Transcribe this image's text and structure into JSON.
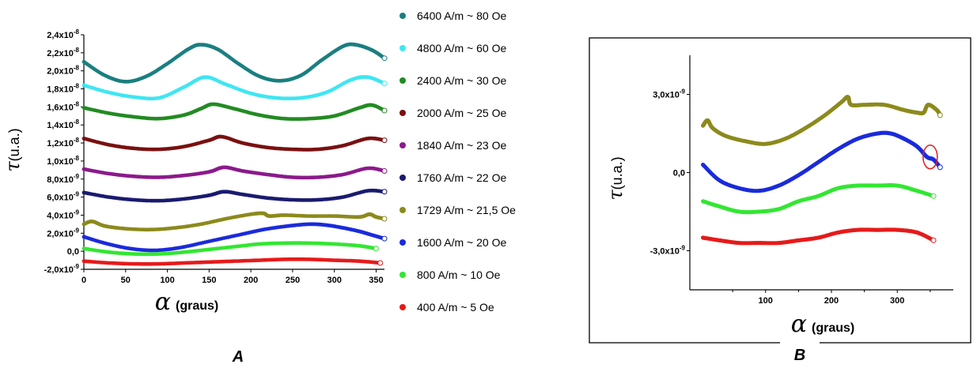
{
  "chart_data": [
    {
      "panel": "A",
      "type": "scatter",
      "panel_label": "A",
      "xlabel_symbol": "α",
      "xlabel": "(graus)",
      "ylabel_symbol": "τ",
      "ylabel": "(u.a.)",
      "xlim": [
        0,
        360
      ],
      "ylim": [
        -2e-09,
        2.4e-08
      ],
      "x_ticks": [
        "0",
        "50",
        "100",
        "150",
        "200",
        "250",
        "300",
        "350"
      ],
      "x_tick_values": [
        0,
        50,
        100,
        150,
        200,
        250,
        300,
        350
      ],
      "y_ticks": [
        "-2,0x10-9",
        "0,0",
        "2,0x10-9",
        "4,0x10-9",
        "6,0x10-9",
        "8,0x10-9",
        "1,0x10-8",
        "1,2x10-8",
        "1,4x10-8",
        "1,6x10-8",
        "1,8x10-8",
        "2,0x10-8",
        "2,2x10-8",
        "2,4x10-8"
      ],
      "y_tick_mantissa": [
        "-2,0x10",
        "0,0",
        "2,0x10",
        "4,0x10",
        "6,0x10",
        "8,0x10",
        "1,0x10",
        "1,2x10",
        "1,4x10",
        "1,6x10",
        "1,8x10",
        "2,0x10",
        "2,2x10",
        "2,4x10"
      ],
      "y_tick_exponent": [
        "-9",
        "",
        "-9",
        "-9",
        "-9",
        "-9",
        "-8",
        "-8",
        "-8",
        "-8",
        "-8",
        "-8",
        "-8",
        "-8"
      ],
      "y_tick_values": [
        -2e-09,
        0,
        2e-09,
        4e-09,
        6e-09,
        8e-09,
        1e-08,
        1.2e-08,
        1.4e-08,
        1.6e-08,
        1.8e-08,
        2e-08,
        2.2e-08,
        2.4e-08
      ],
      "series": [
        {
          "name": "6400 A/m ~ 80 Oe",
          "color": "#1a7f80",
          "x": [
            0,
            25,
            50,
            75,
            100,
            125,
            140,
            160,
            185,
            210,
            235,
            260,
            285,
            310,
            325,
            345,
            360
          ],
          "y": [
            2.1e-08,
            1.95e-08,
            1.88e-08,
            1.94e-08,
            2.08e-08,
            2.24e-08,
            2.29e-08,
            2.24e-08,
            2.08e-08,
            1.94e-08,
            1.89e-08,
            1.95e-08,
            2.12e-08,
            2.27e-08,
            2.29e-08,
            2.23e-08,
            2.14e-08
          ]
        },
        {
          "name": "4800 A/m ~ 60 Oe",
          "color": "#3fe6f2",
          "x": [
            0,
            30,
            60,
            90,
            120,
            145,
            170,
            200,
            230,
            260,
            290,
            320,
            340,
            360
          ],
          "y": [
            1.84e-08,
            1.76e-08,
            1.71e-08,
            1.7e-08,
            1.82e-08,
            1.93e-08,
            1.85e-08,
            1.75e-08,
            1.7e-08,
            1.7e-08,
            1.76e-08,
            1.9e-08,
            1.93e-08,
            1.86e-08
          ]
        },
        {
          "name": "2400 A/m ~ 30 Oe",
          "color": "#228b22",
          "x": [
            0,
            30,
            60,
            90,
            120,
            140,
            155,
            180,
            210,
            240,
            270,
            300,
            330,
            345,
            360
          ],
          "y": [
            1.59e-08,
            1.53e-08,
            1.49e-08,
            1.47e-08,
            1.51e-08,
            1.58e-08,
            1.63e-08,
            1.58e-08,
            1.51e-08,
            1.47e-08,
            1.47e-08,
            1.5e-08,
            1.59e-08,
            1.62e-08,
            1.56e-08
          ]
        },
        {
          "name": "2000 A/m ~ 25 Oe",
          "color": "#7a1010",
          "x": [
            0,
            30,
            60,
            90,
            120,
            150,
            165,
            190,
            220,
            250,
            280,
            310,
            340,
            360
          ],
          "y": [
            1.25e-08,
            1.18e-08,
            1.14e-08,
            1.13e-08,
            1.16e-08,
            1.23e-08,
            1.27e-08,
            1.2e-08,
            1.15e-08,
            1.13e-08,
            1.13e-08,
            1.17e-08,
            1.25e-08,
            1.23e-08
          ]
        },
        {
          "name": "1840 A/m ~ 23 Oe",
          "color": "#8b1a8b",
          "x": [
            0,
            30,
            60,
            90,
            120,
            150,
            168,
            190,
            220,
            250,
            280,
            310,
            340,
            360
          ],
          "y": [
            9.1e-09,
            8.6e-09,
            8.3e-09,
            8.2e-09,
            8.4e-09,
            8.8e-09,
            9.3e-09,
            8.9e-09,
            8.5e-09,
            8.2e-09,
            8.2e-09,
            8.5e-09,
            9.2e-09,
            8.9e-09
          ]
        },
        {
          "name": "1760 A/m ~ 22 Oe",
          "color": "#1a1a70",
          "x": [
            0,
            30,
            60,
            90,
            120,
            150,
            168,
            190,
            220,
            250,
            280,
            310,
            340,
            360
          ],
          "y": [
            6.5e-09,
            6e-09,
            5.7e-09,
            5.6e-09,
            5.8e-09,
            6.2e-09,
            6.6e-09,
            6.3e-09,
            5.9e-09,
            5.7e-09,
            5.7e-09,
            6e-09,
            6.7e-09,
            6.6e-09
          ]
        },
        {
          "name": "1729 A/m ~ 21,5 Oe",
          "color": "#8c8a1c",
          "x": [
            0,
            10,
            25,
            50,
            80,
            110,
            140,
            170,
            200,
            215,
            222,
            240,
            270,
            300,
            330,
            342,
            350,
            360
          ],
          "y": [
            3e-09,
            3.3e-09,
            2.8e-09,
            2.5e-09,
            2.4e-09,
            2.6e-09,
            3e-09,
            3.6e-09,
            4.1e-09,
            4.2e-09,
            3.9e-09,
            4e-09,
            3.9e-09,
            3.9e-09,
            3.8e-09,
            4.1e-09,
            3.8e-09,
            3.6e-09
          ]
        },
        {
          "name": "1600 A/m ~  20 Oe",
          "color": "#1a2bdb",
          "x": [
            0,
            25,
            55,
            85,
            115,
            150,
            185,
            215,
            245,
            270,
            290,
            310,
            330,
            345,
            360
          ],
          "y": [
            1.6e-09,
            9e-10,
            3e-10,
            1e-10,
            4e-10,
            1.1e-09,
            1.8e-09,
            2.4e-09,
            2.8e-09,
            3e-09,
            2.9e-09,
            2.6e-09,
            2.2e-09,
            1.8e-09,
            1.4e-09
          ]
        },
        {
          "name": "800 A/m ~ 10 Oe",
          "color": "#33e633",
          "x": [
            0,
            30,
            60,
            90,
            120,
            150,
            180,
            210,
            240,
            270,
            300,
            330,
            350
          ],
          "y": [
            3e-10,
            -1e-10,
            -3e-10,
            -3e-10,
            -1e-10,
            2e-10,
            5e-10,
            8e-10,
            9e-10,
            9e-10,
            8e-10,
            6e-10,
            3e-10
          ]
        },
        {
          "name": "400 A/m ~ 5 Oe",
          "color": "#e61a1a",
          "x": [
            0,
            30,
            60,
            90,
            120,
            150,
            180,
            210,
            240,
            270,
            300,
            330,
            355
          ],
          "y": [
            -1.1e-09,
            -1.3e-09,
            -1.4e-09,
            -1.4e-09,
            -1.3e-09,
            -1.2e-09,
            -1.1e-09,
            -1e-09,
            -9e-10,
            -9e-10,
            -1e-09,
            -1.1e-09,
            -1.3e-09
          ]
        }
      ]
    },
    {
      "panel": "B",
      "type": "scatter",
      "panel_label": "B",
      "xlabel_symbol": "α",
      "xlabel": "(graus)",
      "ylabel_symbol": "τ",
      "ylabel": "(u.a.)",
      "xlim": [
        -15,
        385
      ],
      "ylim": [
        -4.5e-09,
        4.5e-09
      ],
      "x_ticks": [
        "100",
        "200",
        "300"
      ],
      "x_tick_values": [
        100,
        200,
        300
      ],
      "y_ticks": [
        "3,0x10-9",
        "0,0",
        "-3,0x10-9"
      ],
      "y_tick_mantissa": [
        "3,0x10",
        "0,0",
        "-3,0x10"
      ],
      "y_tick_exponent": [
        "-9",
        "",
        "-9"
      ],
      "y_tick_values": [
        3e-09,
        0,
        -3e-09
      ],
      "series": [
        {
          "name": "1729 A/m ~ 21,5 Oe",
          "color": "#8c8a1c",
          "x": [
            5,
            12,
            20,
            40,
            70,
            100,
            130,
            160,
            190,
            215,
            225,
            230,
            250,
            280,
            310,
            330,
            340,
            347,
            360,
            365
          ],
          "y": [
            1.8e-09,
            2e-09,
            1.7e-09,
            1.4e-09,
            1.2e-09,
            1.1e-09,
            1.3e-09,
            1.7e-09,
            2.2e-09,
            2.7e-09,
            2.9e-09,
            2.6e-09,
            2.6e-09,
            2.6e-09,
            2.4e-09,
            2.3e-09,
            2.3e-09,
            2.6e-09,
            2.4e-09,
            2.2e-09
          ]
        },
        {
          "name": "1600 A/m ~  20 Oe",
          "color": "#1a2bdb",
          "x": [
            5,
            30,
            60,
            90,
            120,
            150,
            180,
            210,
            240,
            270,
            290,
            310,
            330,
            345,
            355,
            365
          ],
          "y": [
            3e-10,
            -3e-10,
            -6e-10,
            -7e-10,
            -5e-10,
            -1e-10,
            4e-10,
            9e-10,
            1.3e-09,
            1.5e-09,
            1.5e-09,
            1.3e-09,
            1e-09,
            6e-10,
            5e-10,
            2e-10
          ]
        },
        {
          "name": "800 A/m ~ 10 Oe",
          "color": "#33e633",
          "x": [
            5,
            30,
            60,
            90,
            120,
            150,
            180,
            210,
            240,
            270,
            300,
            330,
            355
          ],
          "y": [
            -1.1e-09,
            -1.3e-09,
            -1.5e-09,
            -1.5e-09,
            -1.4e-09,
            -1.1e-09,
            -9e-10,
            -6e-10,
            -5e-10,
            -5e-10,
            -5e-10,
            -7e-10,
            -9e-10
          ]
        },
        {
          "name": "400 A/m ~ 5 Oe",
          "color": "#e61a1a",
          "x": [
            5,
            30,
            60,
            90,
            120,
            150,
            180,
            210,
            240,
            270,
            300,
            330,
            355
          ],
          "y": [
            -2.5e-09,
            -2.6e-09,
            -2.7e-09,
            -2.7e-09,
            -2.7e-09,
            -2.6e-09,
            -2.5e-09,
            -2.3e-09,
            -2.2e-09,
            -2.2e-09,
            -2.2e-09,
            -2.3e-09,
            -2.6e-09
          ]
        }
      ],
      "highlight": {
        "x": 350,
        "y": 6e-10,
        "color": "#e61a1a"
      }
    }
  ],
  "legend": [
    {
      "label": "6400 A/m ~ 80 Oe",
      "color": "#1a7f80"
    },
    {
      "label": "4800 A/m ~ 60 Oe",
      "color": "#3fe6f2"
    },
    {
      "label": "2400 A/m ~ 30 Oe",
      "color": "#228b22"
    },
    {
      "label": "2000 A/m ~ 25 Oe",
      "color": "#7a1010"
    },
    {
      "label": "1840 A/m ~ 23 Oe",
      "color": "#8b1a8b"
    },
    {
      "label": "1760 A/m ~ 22 Oe",
      "color": "#1a1a70"
    },
    {
      "label": "1729 A/m ~ 21,5 Oe",
      "color": "#8c8a1c"
    },
    {
      "label": "1600 A/m ~  20 Oe",
      "color": "#1a2bdb"
    },
    {
      "label": "800 A/m ~ 10 Oe",
      "color": "#33e633"
    },
    {
      "label": "400 A/m ~ 5 Oe",
      "color": "#e61a1a"
    }
  ]
}
